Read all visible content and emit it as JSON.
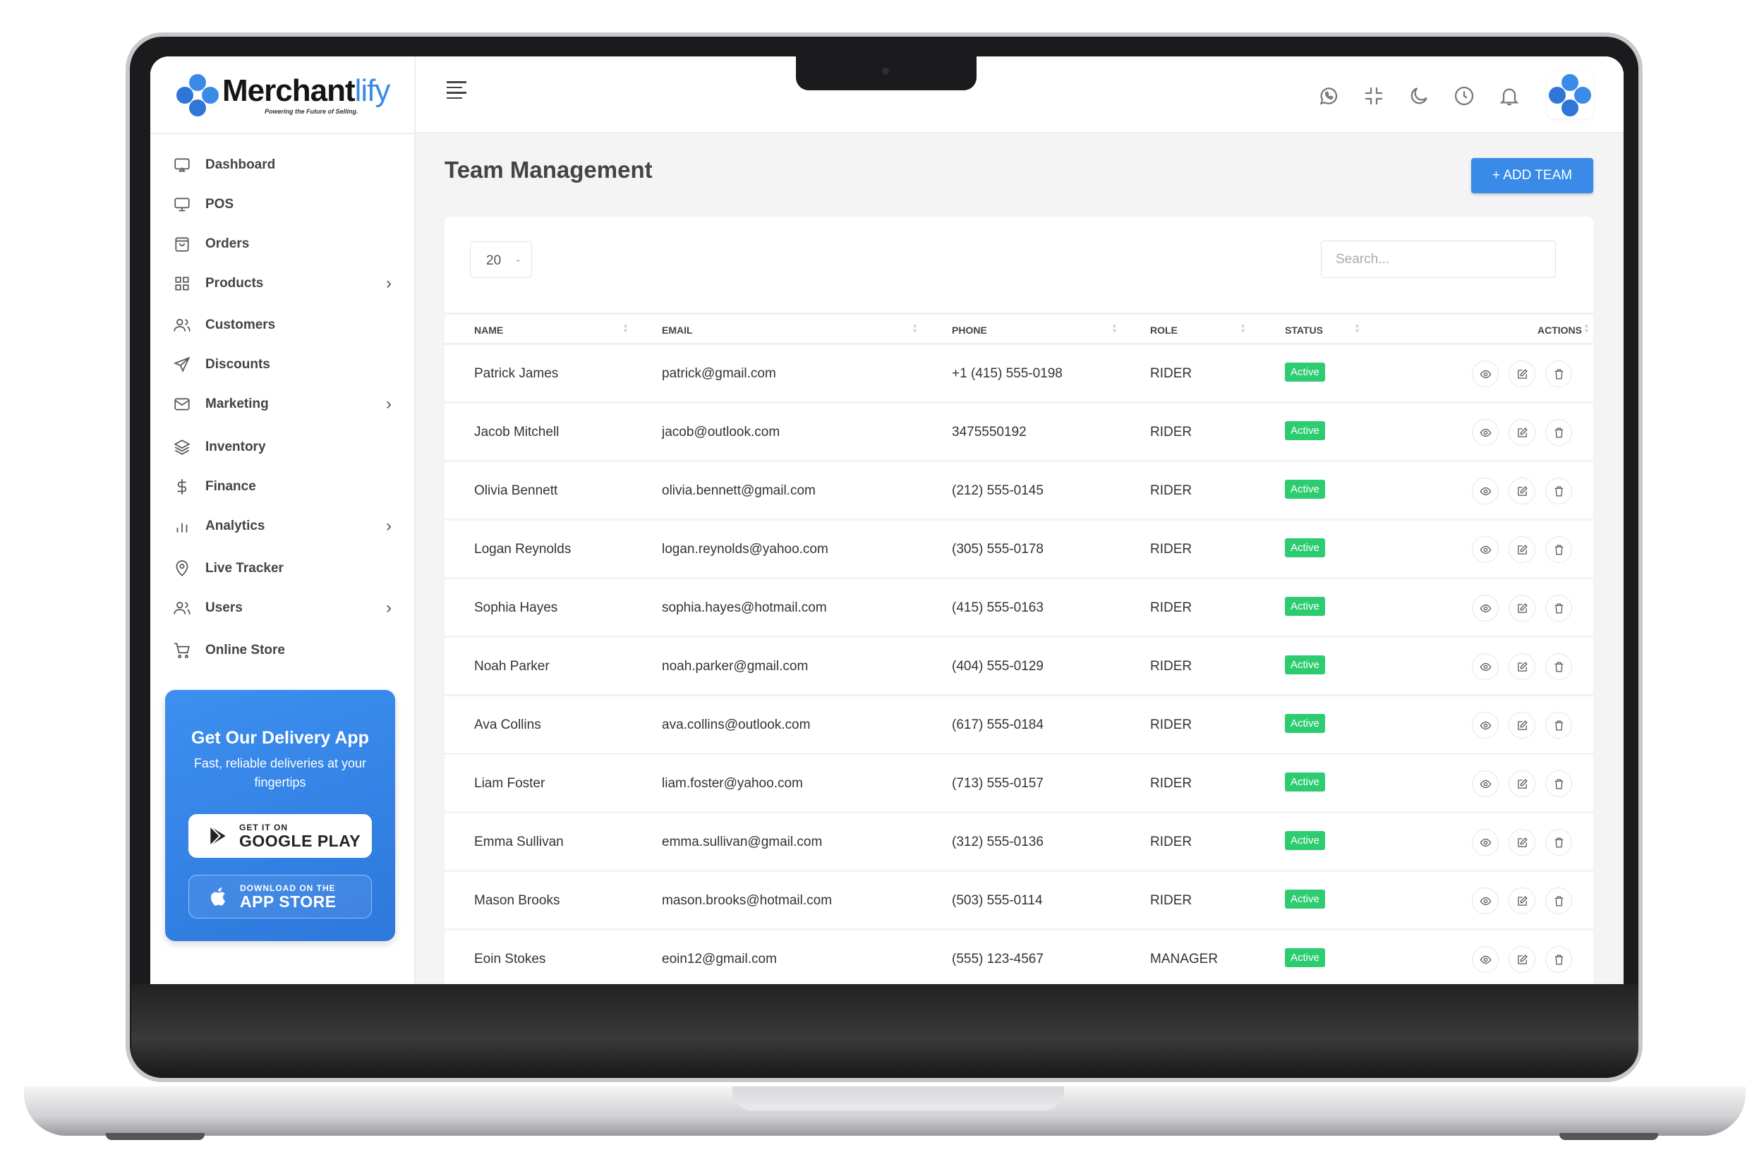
{
  "brand": {
    "name_main": "Merchant",
    "name_accent": "lify",
    "tagline": "Powering the Future of Selling.",
    "accent": "#3a8ae8"
  },
  "sidebar": {
    "items": [
      {
        "label": "Dashboard",
        "icon": "dashboard-icon",
        "chevron": false
      },
      {
        "label": "POS",
        "icon": "monitor-icon",
        "chevron": false
      },
      {
        "label": "Orders",
        "icon": "shopping-bag-icon",
        "chevron": false
      },
      {
        "label": "Products",
        "icon": "grid-icon",
        "chevron": true
      },
      {
        "label": "Customers",
        "icon": "users-icon",
        "chevron": false
      },
      {
        "label": "Discounts",
        "icon": "send-icon",
        "chevron": false
      },
      {
        "label": "Marketing",
        "icon": "mail-icon",
        "chevron": true
      },
      {
        "label": "Inventory",
        "icon": "layers-icon",
        "chevron": false
      },
      {
        "label": "Finance",
        "icon": "dollar-icon",
        "chevron": false
      },
      {
        "label": "Analytics",
        "icon": "bar-chart-icon",
        "chevron": true
      },
      {
        "label": "Live Tracker",
        "icon": "map-pin-icon",
        "chevron": false
      },
      {
        "label": "Users",
        "icon": "users-icon",
        "chevron": true
      },
      {
        "label": "Online Store",
        "icon": "cart-icon",
        "chevron": false
      }
    ]
  },
  "promo": {
    "title": "Get Our Delivery App",
    "text": "Fast, reliable deliveries at your fingertips",
    "google_small": "GET IT ON",
    "google_big": "GOOGLE PLAY",
    "apple_small": "DOWNLOAD ON THE",
    "apple_big": "APP STORE"
  },
  "header": {
    "icons": [
      "whatsapp-icon",
      "minimize-icon",
      "moon-icon",
      "clock-icon",
      "bell-icon"
    ]
  },
  "page": {
    "title": "Team Management",
    "add_button": "+  ADD TEAM"
  },
  "table": {
    "page_size": "20",
    "search_placeholder": "Search...",
    "columns": [
      "NAME",
      "EMAIL",
      "PHONE",
      "ROLE",
      "STATUS",
      "ACTIONS"
    ],
    "status_color": "#2ecc71",
    "rows": [
      {
        "name": "Patrick James",
        "email": "patrick@gmail.com",
        "phone": "+1 (415) 555-0198",
        "role": "RIDER",
        "status": "Active"
      },
      {
        "name": "Jacob Mitchell",
        "email": "jacob@outlook.com",
        "phone": "3475550192",
        "role": "RIDER",
        "status": "Active"
      },
      {
        "name": "Olivia Bennett",
        "email": "olivia.bennett@gmail.com",
        "phone": "(212) 555-0145",
        "role": "RIDER",
        "status": "Active"
      },
      {
        "name": "Logan Reynolds",
        "email": "logan.reynolds@yahoo.com",
        "phone": "(305) 555-0178",
        "role": "RIDER",
        "status": "Active"
      },
      {
        "name": "Sophia Hayes",
        "email": "sophia.hayes@hotmail.com",
        "phone": "(415) 555-0163",
        "role": "RIDER",
        "status": "Active"
      },
      {
        "name": "Noah Parker",
        "email": "noah.parker@gmail.com",
        "phone": "(404) 555-0129",
        "role": "RIDER",
        "status": "Active"
      },
      {
        "name": "Ava Collins",
        "email": "ava.collins@outlook.com",
        "phone": "(617) 555-0184",
        "role": "RIDER",
        "status": "Active"
      },
      {
        "name": "Liam Foster",
        "email": "liam.foster@yahoo.com",
        "phone": "(713) 555-0157",
        "role": "RIDER",
        "status": "Active"
      },
      {
        "name": "Emma Sullivan",
        "email": "emma.sullivan@gmail.com",
        "phone": "(312) 555-0136",
        "role": "RIDER",
        "status": "Active"
      },
      {
        "name": "Mason Brooks",
        "email": "mason.brooks@hotmail.com",
        "phone": "(503) 555-0114",
        "role": "RIDER",
        "status": "Active"
      },
      {
        "name": "Eoin Stokes",
        "email": "eoin12@gmail.com",
        "phone": "(555) 123-4567",
        "role": "MANAGER",
        "status": "Active"
      }
    ],
    "row_actions": [
      "view-icon",
      "edit-icon",
      "delete-icon"
    ]
  }
}
